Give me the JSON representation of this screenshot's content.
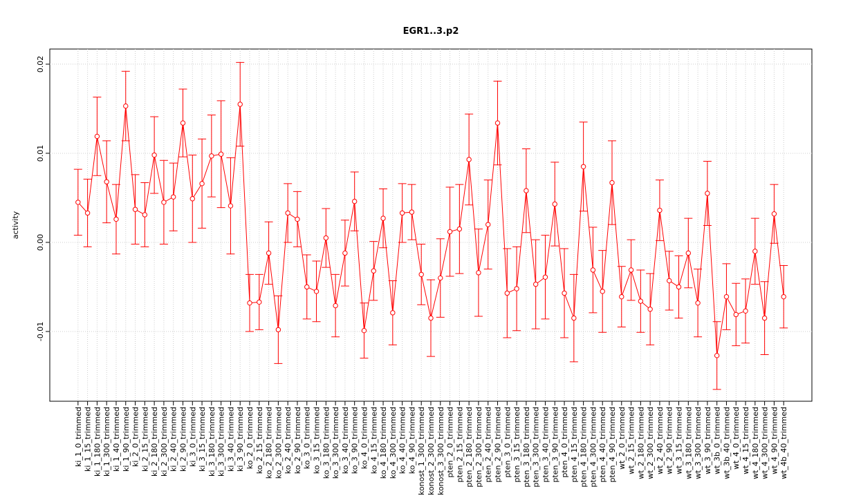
{
  "chart_data": {
    "type": "errorbar",
    "title": "EGR1..3.p2",
    "y_label": "activity",
    "categories": [
      "ki_1_0_trimmed",
      "ki_1_15_trimmed",
      "ki_1_180_trimmed",
      "ki_1_300_trimmed",
      "ki_1_40_trimmed",
      "ki_1_90_trimmed",
      "ki_2_0_trimmed",
      "ki_2_15_trimmed",
      "ki_2_180_trimmed",
      "ki_2_300_trimmed",
      "ki_2_40_trimmed",
      "ki_2_90_trimmed",
      "ki_3_0_trimmed",
      "ki_3_15_trimmed",
      "ki_3_180_trimmed",
      "ki_3_300_trimmed",
      "ki_3_40_trimmed",
      "ki_3_90_trimmed",
      "ko_2_0_trimmed",
      "ko_2_15_trimmed",
      "ko_2_180_trimmed",
      "ko_2_300_trimmed",
      "ko_2_40_trimmed",
      "ko_2_90_trimmed",
      "ko_3_0_trimmed",
      "ko_3_15_trimmed",
      "ko_3_180_trimmed",
      "ko_3_300_trimmed",
      "ko_3_40_trimmed",
      "ko_3_90_trimmed",
      "ko_4_0_trimmed",
      "ko_4_15_trimmed",
      "ko_4_180_trimmed",
      "ko_4_300_trimmed",
      "ko_4_40_trimmed",
      "ko_4_90_trimmed",
      "konost_1_300_trimmed",
      "konost_2_300_trimmed",
      "konost_3_300_trimmed",
      "pten_2_0_trimmed",
      "pten_2_15_trimmed",
      "pten_2_180_trimmed",
      "pten_2_300_trimmed",
      "pten_2_40_trimmed",
      "pten_2_90_trimmed",
      "pten_3_0_trimmed",
      "pten_3_15_trimmed",
      "pten_3_180_trimmed",
      "pten_3_300_trimmed",
      "pten_3_40_trimmed",
      "pten_3_90_trimmed",
      "pten_4_0_trimmed",
      "pten_4_15_trimmed",
      "pten_4_180_trimmed",
      "pten_4_300_trimmed",
      "pten_4_40_trimmed",
      "pten_4_90_trimmed",
      "wt_2_0_trimmed",
      "wt_2_15_trimmed",
      "wt_2_180_trimmed",
      "wt_2_300_trimmed",
      "wt_2_40_trimmed",
      "wt_2_90_trimmed",
      "wt_3_15_trimmed",
      "wt_3_180_trimmed",
      "wt_3_300_trimmed",
      "wt_3_90_trimmed",
      "wt_3b_0_trimmed",
      "wt_3b_40_trimmed",
      "wt_4_0_trimmed",
      "wt_4_15_trimmed",
      "wt_4_180_trimmed",
      "wt_4_300_trimmed",
      "wt_4_90_trimmed",
      "wt_4b_40_trimmed"
    ],
    "series": [
      {
        "color": "#ff0000",
        "values": [
          0.0045,
          0.0033,
          0.0119,
          0.0068,
          0.0026,
          0.0153,
          0.0037,
          0.0031,
          0.0098,
          0.0045,
          0.0051,
          0.0134,
          0.0049,
          0.0066,
          0.0097,
          0.0099,
          0.0041,
          0.0155,
          -0.0068,
          -0.0067,
          -0.0012,
          -0.0098,
          0.0033,
          0.0026,
          -0.005,
          -0.0055,
          0.0005,
          -0.0071,
          -0.0012,
          0.0046,
          -0.0099,
          -0.0032,
          0.0027,
          -0.0079,
          0.0033,
          0.0034,
          -0.0036,
          -0.0085,
          -0.004,
          0.0012,
          0.0015,
          0.0093,
          -0.0034,
          0.002,
          0.0134,
          -0.0057,
          -0.0052,
          0.0058,
          -0.0047,
          -0.0039,
          0.0043,
          -0.0057,
          -0.0085,
          0.0085,
          -0.0031,
          -0.0055,
          0.0067,
          -0.0061,
          -0.0031,
          -0.0066,
          -0.0075,
          0.0036,
          -0.0043,
          -0.005,
          -0.0012,
          -0.0068,
          0.0055,
          -0.0127,
          -0.0061,
          -0.0081,
          -0.0077,
          -0.001,
          -0.0085,
          0.0032,
          -0.0061
        ],
        "errors": [
          0.0037,
          0.0038,
          0.0044,
          0.0046,
          0.0039,
          0.0039,
          0.0039,
          0.0036,
          0.0043,
          0.0047,
          0.0038,
          0.0038,
          0.0049,
          0.005,
          0.0046,
          0.006,
          0.0054,
          0.0047,
          0.0032,
          0.0031,
          0.0035,
          0.0038,
          0.0033,
          0.0031,
          0.0036,
          0.0034,
          0.0033,
          0.0035,
          0.0037,
          0.0033,
          0.0031,
          0.0033,
          0.0033,
          0.0036,
          0.0033,
          0.0031,
          0.0034,
          0.0043,
          0.0044,
          0.005,
          0.005,
          0.0051,
          0.0049,
          0.005,
          0.0047,
          0.005,
          0.0047,
          0.0047,
          0.005,
          0.0047,
          0.0047,
          0.005,
          0.0049,
          0.005,
          0.0048,
          0.0046,
          0.0047,
          0.0034,
          0.0034,
          0.0035,
          0.004,
          0.0034,
          0.0033,
          0.0035,
          0.0039,
          0.0038,
          0.0036,
          0.0038,
          0.0037,
          0.0035,
          0.0036,
          0.0037,
          0.0041,
          0.0033,
          0.0035
        ]
      }
    ],
    "ylim": [
      -0.01783,
      0.0217
    ],
    "yticks": [
      -0.01,
      {
        "value": 0,
        "label": "0.00"
      },
      0.01,
      0.02
    ],
    "grid": true
  }
}
